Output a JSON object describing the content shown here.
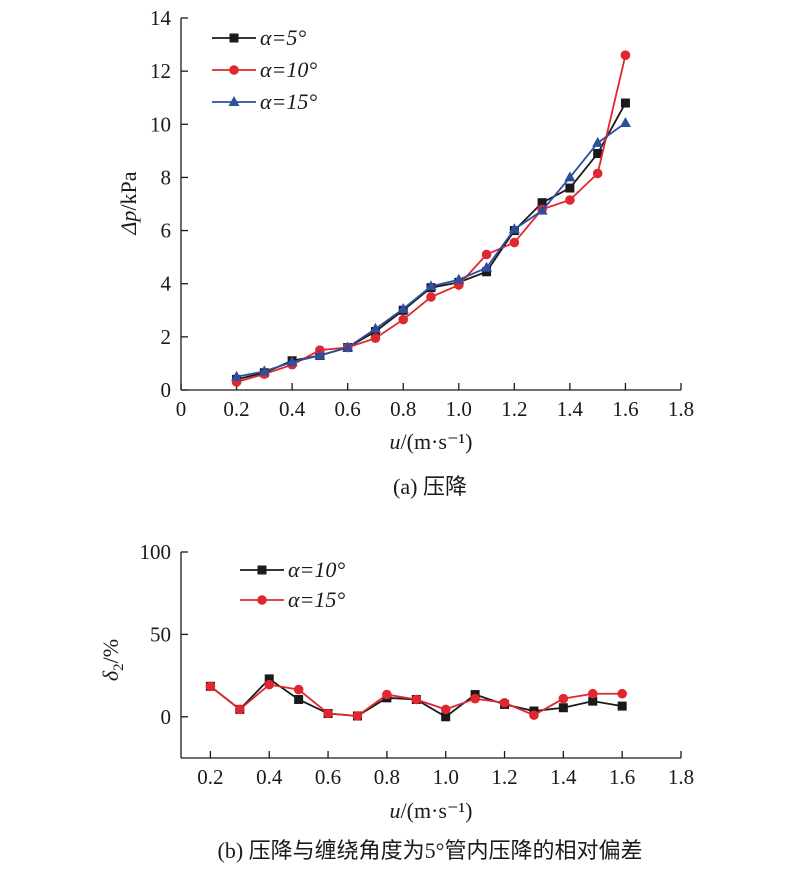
{
  "chart_data": [
    {
      "id": "a",
      "type": "line",
      "caption": "(a) 压降",
      "ylabel_symbol": "Δp",
      "ylabel_unit": "/kPa",
      "xlabel_symbol": "u",
      "xlabel_unit": "/(m·s⁻¹)",
      "xlim": [
        0,
        1.8
      ],
      "ylim": [
        0,
        14
      ],
      "xticks": [
        "0",
        "0.2",
        "0.4",
        "0.6",
        "0.8",
        "1.0",
        "1.2",
        "1.4",
        "1.6",
        "1.8"
      ],
      "yticks": [
        "0",
        "2",
        "4",
        "6",
        "8",
        "10",
        "12",
        "14"
      ],
      "x": [
        0.2,
        0.3,
        0.4,
        0.5,
        0.6,
        0.7,
        0.8,
        0.9,
        1.0,
        1.1,
        1.2,
        1.3,
        1.4,
        1.5,
        1.6
      ],
      "legend_position": "top-left",
      "series": [
        {
          "name": "α=5°",
          "color": "#1a1a1a",
          "marker": "square",
          "values": [
            0.4,
            0.65,
            1.1,
            1.3,
            1.6,
            2.2,
            3.0,
            3.85,
            4.05,
            4.45,
            6.0,
            7.05,
            7.6,
            8.9,
            10.8
          ]
        },
        {
          "name": "α=10°",
          "color": "#e0262e",
          "marker": "circle",
          "values": [
            0.3,
            0.6,
            0.95,
            1.5,
            1.6,
            1.95,
            2.65,
            3.5,
            3.95,
            5.1,
            5.55,
            6.8,
            7.15,
            8.15,
            12.6
          ]
        },
        {
          "name": "α=15°",
          "color": "#2d4f9e",
          "marker": "triangle",
          "values": [
            0.5,
            0.7,
            1.05,
            1.3,
            1.6,
            2.3,
            3.05,
            3.9,
            4.15,
            4.6,
            6.05,
            6.75,
            8.0,
            9.3,
            10.05
          ]
        }
      ]
    },
    {
      "id": "b",
      "type": "line",
      "caption": "(b) 压降与缠绕角度为5°管内压降的相对偏差",
      "ylabel_symbol": "δ",
      "ylabel_sub": "2",
      "ylabel_unit": "/%",
      "xlabel_symbol": "u",
      "xlabel_unit": "/(m·s⁻¹)",
      "xlim": [
        0.1,
        1.8
      ],
      "ylim": [
        -25,
        100
      ],
      "xticks": [
        "0.2",
        "0.4",
        "0.6",
        "0.8",
        "1.0",
        "1.2",
        "1.4",
        "1.6",
        "1.8"
      ],
      "yticks": [
        "0",
        "50",
        "100"
      ],
      "x": [
        0.2,
        0.3,
        0.4,
        0.5,
        0.6,
        0.7,
        0.8,
        0.9,
        1.0,
        1.1,
        1.2,
        1.3,
        1.4,
        1.5,
        1.6
      ],
      "legend_position": "top-left",
      "series": [
        {
          "name": "α=10°",
          "color": "#1a1a1a",
          "marker": "square",
          "values": [
            18.5,
            4.5,
            23,
            10.5,
            2,
            0.5,
            11.5,
            10.5,
            0,
            13.5,
            7.5,
            3.5,
            5.5,
            9.5,
            6.5
          ]
        },
        {
          "name": "α=15°",
          "color": "#e0262e",
          "marker": "circle",
          "values": [
            18.5,
            4.5,
            19.5,
            16.5,
            2,
            0.5,
            13.5,
            10.5,
            4.5,
            11,
            8.5,
            1,
            11,
            14,
            14
          ]
        }
      ]
    }
  ]
}
